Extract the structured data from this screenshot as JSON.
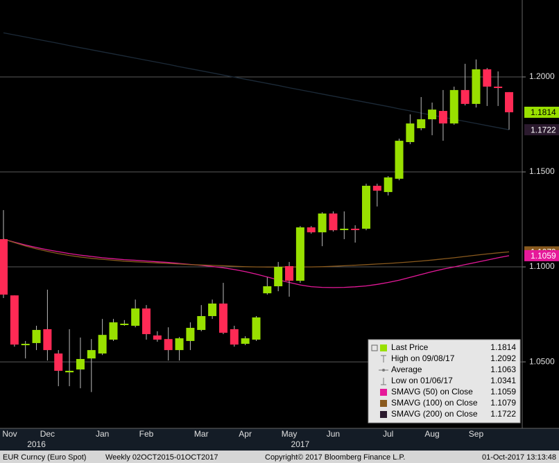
{
  "chart_data": {
    "type": "candlestick",
    "categories": [
      "Nov",
      null,
      null,
      null,
      "Dec",
      null,
      null,
      null,
      null,
      "Jan",
      null,
      null,
      null,
      "Feb",
      null,
      null,
      null,
      null,
      "Mar",
      null,
      null,
      null,
      "Apr",
      null,
      null,
      null,
      "May",
      null,
      null,
      null,
      "Jun",
      null,
      null,
      null,
      null,
      "Jul",
      null,
      null,
      null,
      "Aug",
      null,
      null,
      null,
      "Sep",
      null,
      null,
      null
    ],
    "year_categories": [
      null,
      null,
      null,
      "2016",
      null,
      null,
      null,
      null,
      null,
      null,
      null,
      null,
      null,
      null,
      null,
      null,
      null,
      null,
      null,
      null,
      null,
      null,
      null,
      null,
      null,
      null,
      null,
      "2017",
      null,
      null,
      null,
      null,
      null,
      null,
      null,
      null,
      null,
      null,
      null,
      null,
      null,
      null,
      null,
      null,
      null,
      null,
      null
    ],
    "series": [
      {
        "name": "Last Price",
        "color": "#99e000",
        "down_color": "#ff2a55",
        "open": [
          1.1146,
          1.085,
          1.0591,
          1.0599,
          1.0672,
          1.0544,
          1.0445,
          1.046,
          1.0518,
          1.0544,
          1.0617,
          1.0697,
          1.069,
          1.0781,
          1.0639,
          1.062,
          1.0562,
          1.061,
          1.0668,
          1.0741,
          1.0807,
          1.0672,
          1.0595,
          1.0617,
          1.0861,
          1.0898,
          1.1004,
          1.0927,
          1.1208,
          1.1182,
          1.1281,
          1.1197,
          1.1201,
          1.1201,
          1.1427,
          1.1394,
          1.1464,
          1.1657,
          1.173,
          1.1777,
          1.1821,
          1.1755,
          1.1931,
          1.1858,
          1.204,
          1.1949,
          1.192
        ],
        "high": [
          1.1299,
          1.085,
          1.061,
          1.069,
          1.088,
          1.0562,
          1.0672,
          1.0628,
          1.062,
          1.0726,
          1.0726,
          1.072,
          1.0828,
          1.0799,
          1.0661,
          1.0682,
          1.0631,
          1.0708,
          1.0799,
          1.0828,
          1.0916,
          1.069,
          1.0635,
          1.0741,
          1.0945,
          1.1026,
          1.1026,
          1.1215,
          1.1215,
          1.1288,
          1.1292,
          1.1292,
          1.1219,
          1.1438,
          1.1438,
          1.1478,
          1.1675,
          1.1803,
          1.1894,
          1.1865,
          1.1931,
          1.1949,
          1.2069,
          1.2092,
          1.2047,
          1.2029,
          1.192
        ],
        "low": [
          1.0836,
          1.058,
          1.0518,
          1.0562,
          1.0507,
          1.0372,
          1.0372,
          1.0361,
          1.0341,
          1.0536,
          1.061,
          1.069,
          1.0682,
          1.0617,
          1.0606,
          1.0507,
          1.0507,
          1.0562,
          1.0661,
          1.0726,
          1.0646,
          1.058,
          1.0588,
          1.061,
          1.0854,
          1.0872,
          1.0843,
          1.0916,
          1.1175,
          1.1109,
          1.1186,
          1.1146,
          1.1128,
          1.1193,
          1.1318,
          1.1376,
          1.1456,
          1.1646,
          1.1719,
          1.1693,
          1.1664,
          1.1748,
          1.185,
          1.1839,
          1.1847,
          1.1847,
          1.1722
        ],
        "close": [
          1.0854,
          1.0591,
          1.0595,
          1.0668,
          1.0562,
          1.0453,
          1.0453,
          1.0515,
          1.0562,
          1.0642,
          1.0708,
          1.0701,
          1.0781,
          1.0646,
          1.0617,
          1.0562,
          1.0624,
          1.0679,
          1.0741,
          1.0807,
          1.0653,
          1.0591,
          1.0624,
          1.0734,
          1.0898,
          1.1,
          1.0927,
          1.1208,
          1.1182,
          1.1281,
          1.1193,
          1.1201,
          1.1197,
          1.1427,
          1.1401,
          1.1471,
          1.1664,
          1.1755,
          1.1777,
          1.1828,
          1.1755,
          1.1931,
          1.1858,
          1.204,
          1.1949,
          1.1945,
          1.1814
        ]
      },
      {
        "name": "SMAVG (50) on Close",
        "color": "#e6199a",
        "values": [
          1.1146,
          1.113,
          1.1115,
          1.1102,
          1.109,
          1.108,
          1.107,
          1.1062,
          1.1055,
          1.1048,
          1.1043,
          1.1038,
          1.1035,
          1.1031,
          1.1027,
          1.1023,
          1.1018,
          1.1013,
          1.1008,
          1.1002,
          1.0995,
          1.0986,
          1.0975,
          1.0962,
          1.0947,
          1.0932,
          1.0918,
          1.0905,
          1.0896,
          1.0892,
          1.0891,
          1.0892,
          1.0895,
          1.09,
          1.0908,
          1.0918,
          1.093,
          1.0945,
          1.096,
          1.0975,
          1.0988,
          1.1,
          1.1012,
          1.1024,
          1.1036,
          1.1048,
          1.1059
        ]
      },
      {
        "name": "SMAVG (100) on Close",
        "color": "#8a5a1e",
        "values": [
          1.1146,
          1.1128,
          1.111,
          1.1095,
          1.1082,
          1.107,
          1.106,
          1.1052,
          1.1045,
          1.104,
          1.1035,
          1.103,
          1.1027,
          1.1024,
          1.1021,
          1.1018,
          1.1015,
          1.1012,
          1.101,
          1.1008,
          1.1006,
          1.1003,
          1.1001,
          1.1,
          1.0999,
          1.0999,
          1.0999,
          1.1,
          1.1,
          1.1001,
          1.1003,
          1.1006,
          1.1009,
          1.1012,
          1.1015,
          1.1018,
          1.1022,
          1.1026,
          1.1031,
          1.1036,
          1.1042,
          1.1048,
          1.1055,
          1.1062,
          1.1068,
          1.1074,
          1.1079
        ]
      },
      {
        "name": "SMAVG (200) on Close",
        "color": "#2b1a2e",
        "line_color": "#1c2a38",
        "values": [
          1.2232,
          1.2221,
          1.221,
          1.2199,
          1.2188,
          1.2177,
          1.2165,
          1.2154,
          1.2143,
          1.2132,
          1.2121,
          1.211,
          1.2099,
          1.2088,
          1.2077,
          1.2066,
          1.2054,
          1.2043,
          1.2032,
          1.2021,
          1.201,
          1.1999,
          1.1988,
          1.1977,
          1.1966,
          1.1955,
          1.1943,
          1.1932,
          1.1921,
          1.191,
          1.1899,
          1.1888,
          1.1877,
          1.1866,
          1.1855,
          1.1844,
          1.1832,
          1.1821,
          1.181,
          1.1799,
          1.1788,
          1.1777,
          1.1766,
          1.1755,
          1.1744,
          1.1733,
          1.1722
        ]
      }
    ],
    "stats": [
      {
        "label": "High on 09/08/17",
        "value": 1.2092
      },
      {
        "label": "Average",
        "value": 1.1063
      },
      {
        "label": "Low on 01/06/17",
        "value": 1.0341
      }
    ],
    "ylim": [
      1.015,
      1.2405
    ],
    "yticks": [
      {
        "value": 1.05,
        "label": "1.0500"
      },
      {
        "value": 1.1,
        "label": "1.1000"
      },
      {
        "value": 1.15,
        "label": "1.1500"
      },
      {
        "value": 1.2,
        "label": "1.2000"
      }
    ],
    "grid": true,
    "legend": "lower right"
  },
  "footer": {
    "security": "EUR Curncy (Euro Spot)",
    "range": "Weekly 02OCT2015-01OCT2017",
    "copyright": "Copyright© 2017 Bloomberg Finance L.P.",
    "timestamp": "01-Oct-2017 13:13:48"
  }
}
